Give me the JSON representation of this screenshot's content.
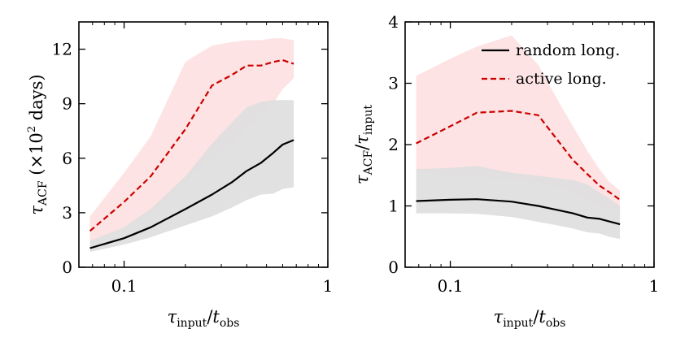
{
  "chart_data": [
    {
      "type": "line",
      "xscale": "log",
      "xlim": [
        0.06,
        1.0
      ],
      "ylim": [
        0,
        13.5
      ],
      "xticks": [
        {
          "value": 0.1,
          "label": "0.1"
        },
        {
          "value": 1,
          "label": "1"
        }
      ],
      "yticks": [
        {
          "value": 0,
          "label": "0"
        },
        {
          "value": 3,
          "label": "3"
        },
        {
          "value": 6,
          "label": "6"
        },
        {
          "value": 9,
          "label": "9"
        },
        {
          "value": 12,
          "label": "12"
        }
      ],
      "xlabel": {
        "tau": "τ",
        "sub1": "input",
        "slash": "/",
        "t": "t",
        "sub2": "obs"
      },
      "ylabel": {
        "tau": "τ",
        "sub": "ACF",
        "prefix": " (×10",
        "sup": "2",
        "suffix": " days)"
      },
      "x": [
        0.068,
        0.1,
        0.135,
        0.2,
        0.27,
        0.34,
        0.4,
        0.47,
        0.54,
        0.6,
        0.68
      ],
      "series": [
        {
          "name": "random long.",
          "style": "solid",
          "color": "#000000",
          "values": [
            1.05,
            1.6,
            2.2,
            3.2,
            4.0,
            4.7,
            5.3,
            5.75,
            6.3,
            6.75,
            7.0
          ],
          "band_low": [
            0.85,
            1.25,
            1.65,
            2.3,
            2.8,
            3.3,
            3.7,
            4.0,
            4.05,
            4.3,
            4.4
          ],
          "band_high": [
            1.45,
            2.2,
            3.2,
            5.0,
            6.8,
            8.0,
            8.8,
            9.1,
            9.2,
            9.2,
            9.2
          ],
          "band_color": "#dedede"
        },
        {
          "name": "active long.",
          "style": "dashed",
          "color": "#cc0000",
          "values": [
            2.0,
            3.6,
            5.0,
            7.6,
            10.0,
            10.6,
            11.1,
            11.1,
            11.3,
            11.4,
            11.2
          ],
          "band_low": [
            1.4,
            2.2,
            3.0,
            4.7,
            6.0,
            6.9,
            7.7,
            8.3,
            9.0,
            9.8,
            10.4
          ],
          "band_high": [
            2.8,
            5.2,
            7.2,
            11.3,
            12.2,
            12.4,
            12.5,
            12.5,
            12.6,
            12.6,
            12.5
          ],
          "band_color": "#fde3e3"
        }
      ]
    },
    {
      "type": "line",
      "xscale": "log",
      "xlim": [
        0.06,
        1.0
      ],
      "ylim": [
        0,
        4
      ],
      "xticks": [
        {
          "value": 0.1,
          "label": "0.1"
        },
        {
          "value": 1,
          "label": "1"
        }
      ],
      "yticks": [
        {
          "value": 0,
          "label": "0"
        },
        {
          "value": 1,
          "label": "1"
        },
        {
          "value": 2,
          "label": "2"
        },
        {
          "value": 3,
          "label": "3"
        },
        {
          "value": 4,
          "label": "4"
        }
      ],
      "xlabel": {
        "tau": "τ",
        "sub1": "input",
        "slash": "/",
        "t": "t",
        "sub2": "obs"
      },
      "ylabel": {
        "tau1": "τ",
        "sub1": "ACF",
        "slash": "/",
        "tau2": "τ",
        "sub2": "input"
      },
      "legend": {
        "position": "top-right",
        "entries": [
          "random long.",
          "active long."
        ]
      },
      "x": [
        0.068,
        0.1,
        0.135,
        0.2,
        0.27,
        0.34,
        0.4,
        0.47,
        0.54,
        0.6,
        0.68
      ],
      "series": [
        {
          "name": "random long.",
          "style": "solid",
          "color": "#000000",
          "values": [
            1.08,
            1.1,
            1.11,
            1.07,
            1.0,
            0.93,
            0.88,
            0.81,
            0.79,
            0.75,
            0.7
          ],
          "band_low": [
            0.88,
            0.88,
            0.87,
            0.82,
            0.74,
            0.68,
            0.63,
            0.57,
            0.55,
            0.5,
            0.46
          ],
          "band_high": [
            1.6,
            1.62,
            1.65,
            1.54,
            1.49,
            1.45,
            1.42,
            1.35,
            1.22,
            1.12,
            1.0
          ],
          "band_color": "#dedede"
        },
        {
          "name": "active long.",
          "style": "dashed",
          "color": "#cc0000",
          "values": [
            2.02,
            2.3,
            2.52,
            2.55,
            2.48,
            2.05,
            1.75,
            1.52,
            1.33,
            1.23,
            1.1
          ],
          "band_low": [
            1.55,
            1.52,
            1.48,
            1.44,
            1.38,
            1.3,
            1.22,
            1.12,
            1.02,
            0.96,
            0.9
          ],
          "band_high": [
            3.12,
            3.4,
            3.6,
            3.78,
            3.3,
            2.7,
            2.3,
            1.9,
            1.6,
            1.4,
            1.25
          ],
          "band_color": "#fde3e3"
        }
      ]
    }
  ]
}
